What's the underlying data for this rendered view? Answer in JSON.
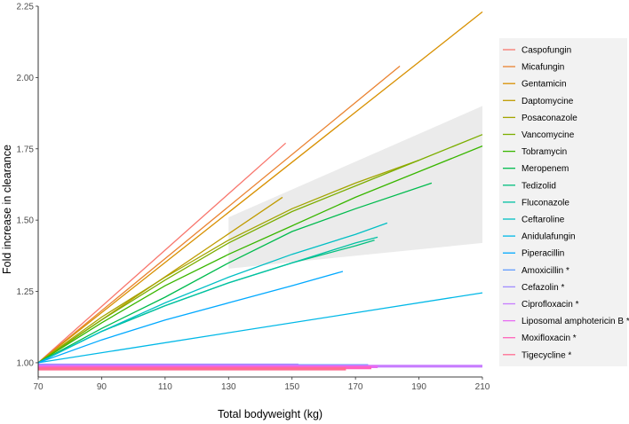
{
  "chart_data": {
    "type": "line",
    "title": "",
    "xlabel": "Total bodyweight (kg)",
    "ylabel": "Fold increase in clearance",
    "xlim": [
      70,
      210
    ],
    "ylim": [
      0.95,
      2.25
    ],
    "x_ticks": [
      "70",
      "90",
      "110",
      "130",
      "150",
      "170",
      "190",
      "210"
    ],
    "y_ticks": [
      "1.00",
      "1.25",
      "1.50",
      "1.75",
      "2.00",
      "2.25"
    ],
    "x_tick_values": [
      70,
      90,
      110,
      130,
      150,
      170,
      190,
      210
    ],
    "y_tick_values": [
      1.0,
      1.25,
      1.5,
      1.75,
      2.0,
      2.25
    ],
    "grid": false,
    "legend_position": "right",
    "reference_band": {
      "color": "#ebebeb",
      "x": [
        130,
        210
      ],
      "lower": [
        1.33,
        1.42
      ],
      "upper": [
        1.51,
        1.9
      ]
    },
    "series": [
      {
        "name": "Caspofungin",
        "color": "#F8766D",
        "x": [
          70,
          148
        ],
        "y": [
          1.0,
          1.77
        ]
      },
      {
        "name": "Micafungin",
        "color": "#EA8331",
        "x": [
          70,
          184
        ],
        "y": [
          1.0,
          2.04
        ]
      },
      {
        "name": "Gentamicin",
        "color": "#D89000",
        "x": [
          70,
          210
        ],
        "y": [
          1.0,
          2.23
        ]
      },
      {
        "name": "Daptomycine",
        "color": "#C09B00",
        "x": [
          70,
          147
        ],
        "y": [
          1.0,
          1.58
        ]
      },
      {
        "name": "Posaconazole",
        "color": "#A3A500",
        "x": [
          70,
          90,
          110,
          130,
          150,
          170,
          190
        ],
        "y": [
          1.0,
          1.16,
          1.3,
          1.43,
          1.54,
          1.63,
          1.71
        ]
      },
      {
        "name": "Vancomycine",
        "color": "#7CAE00",
        "x": [
          70,
          90,
          110,
          130,
          150,
          170,
          190,
          210
        ],
        "y": [
          1.0,
          1.15,
          1.29,
          1.42,
          1.53,
          1.62,
          1.71,
          1.8
        ]
      },
      {
        "name": "Tobramycin",
        "color": "#39B600",
        "x": [
          70,
          90,
          110,
          130,
          150,
          170,
          190,
          210
        ],
        "y": [
          1.0,
          1.14,
          1.27,
          1.38,
          1.48,
          1.58,
          1.67,
          1.76
        ]
      },
      {
        "name": "Meropenem",
        "color": "#00BB4E",
        "x": [
          70,
          90,
          110,
          130,
          150,
          170,
          194
        ],
        "y": [
          1.0,
          1.12,
          1.23,
          1.35,
          1.46,
          1.54,
          1.63
        ]
      },
      {
        "name": "Tedizolid",
        "color": "#00BF7D",
        "x": [
          70,
          90,
          110,
          130,
          150,
          170,
          176
        ],
        "y": [
          1.0,
          1.11,
          1.2,
          1.28,
          1.35,
          1.41,
          1.43
        ]
      },
      {
        "name": "Fluconazole",
        "color": "#00C1A3",
        "x": [
          70,
          90,
          110,
          130,
          150,
          170,
          177
        ],
        "y": [
          1.0,
          1.11,
          1.2,
          1.28,
          1.35,
          1.42,
          1.44
        ]
      },
      {
        "name": "Ceftaroline",
        "color": "#00BFC4",
        "x": [
          70,
          90,
          110,
          130,
          150,
          170,
          180
        ],
        "y": [
          1.0,
          1.11,
          1.21,
          1.3,
          1.38,
          1.45,
          1.49
        ]
      },
      {
        "name": "Anidulafungin",
        "color": "#00B8E7",
        "x": [
          70,
          210
        ],
        "y": [
          1.0,
          1.245
        ]
      },
      {
        "name": "Piperacillin",
        "color": "#00A9FF",
        "x": [
          70,
          90,
          110,
          130,
          150,
          166
        ],
        "y": [
          1.0,
          1.08,
          1.15,
          1.21,
          1.27,
          1.32
        ]
      },
      {
        "name": "Amoxicillin *",
        "color": "#619CFF",
        "x": [
          70,
          174
        ],
        "y": [
          0.99,
          0.99
        ]
      },
      {
        "name": "Cefazolin *",
        "color": "#9F8CFF",
        "x": [
          70,
          152
        ],
        "y": [
          0.992,
          0.992
        ]
      },
      {
        "name": "Ciprofloxacin *",
        "color": "#C77CFF",
        "x": [
          70,
          210
        ],
        "y": [
          0.988,
          0.988
        ]
      },
      {
        "name": "Liposomal amphotericin B *",
        "color": "#E76BF3",
        "x": [
          70,
          177
        ],
        "y": [
          0.986,
          0.986
        ]
      },
      {
        "name": "Moxifloxacin *",
        "color": "#FF62BC",
        "x": [
          70,
          175
        ],
        "y": [
          0.982,
          0.982
        ]
      },
      {
        "name": "Tigecycline *",
        "color": "#FF6C91",
        "x": [
          70,
          167
        ],
        "y": [
          0.978,
          0.978
        ]
      }
    ]
  }
}
